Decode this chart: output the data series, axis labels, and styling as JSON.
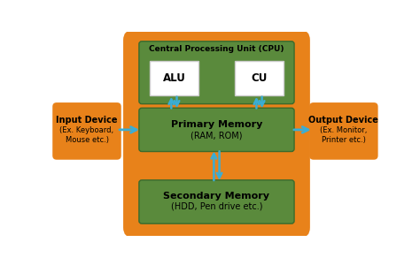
{
  "bg_color": "#FFFFFF",
  "orange_bg": "#E8821A",
  "green_box": "#5A8A3C",
  "white_box": "#FFFFFF",
  "arrow_color": "#3BADD4",
  "cpu_label": "Central Processing Unit (CPU)",
  "alu_label": "ALU",
  "cu_label": "CU",
  "primary_label": "Primary Memory",
  "primary_sub": "(RAM, ROM)",
  "secondary_label": "Secondary Memory",
  "secondary_sub": "(HDD, Pen drive etc.)",
  "input_label": "Input Device",
  "input_sub": "(Ex. Keyboard,\nMouse etc.)",
  "output_label": "Output Device",
  "output_sub": "(Ex. Monitor,\nPrinter etc.)"
}
